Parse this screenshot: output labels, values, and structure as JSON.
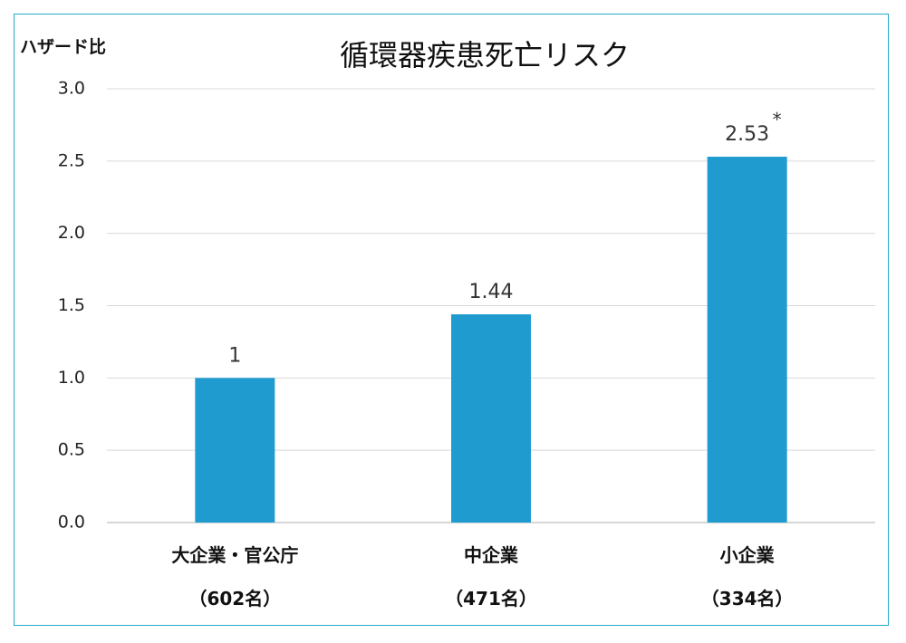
{
  "chart_data": {
    "type": "bar",
    "title": "循環器疾患死亡リスク",
    "ylabel": "ハザード比",
    "xlabel": "",
    "ylim": [
      0,
      3.0
    ],
    "yticks": [
      "0.0",
      "0.5",
      "1.0",
      "1.5",
      "2.0",
      "2.5",
      "3.0"
    ],
    "grid": true,
    "legend": "none",
    "bar_color": "#1f9bd0",
    "categories": [
      {
        "label": "大企業・官公庁",
        "sub": "（602名）"
      },
      {
        "label": "中企業",
        "sub": "（471名）"
      },
      {
        "label": "小企業",
        "sub": "（334名）"
      }
    ],
    "values": [
      1,
      1.44,
      2.53
    ],
    "data_labels": [
      "1",
      "1.44",
      "2.53"
    ],
    "significance_marks": [
      "",
      "",
      "*"
    ]
  }
}
